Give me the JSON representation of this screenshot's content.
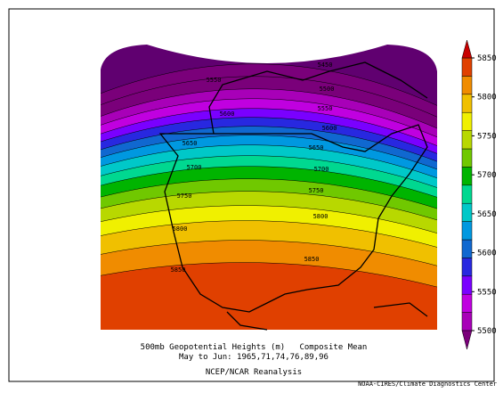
{
  "colorbar": {
    "ticks": [
      5500,
      5550,
      5600,
      5650,
      5700,
      5750,
      5800,
      5850
    ],
    "colors": [
      "#7a007a",
      "#a800b8",
      "#c000e0",
      "#7a00ff",
      "#2828e0",
      "#1068d0",
      "#0098e0",
      "#00c8c8",
      "#00d890",
      "#00b400",
      "#70c800",
      "#b8d800",
      "#f0f000",
      "#f0c000",
      "#f08c00",
      "#e04000",
      "#c80000"
    ]
  },
  "contour_labels": [
    5450,
    5500,
    5550,
    5550,
    5600,
    5600,
    5650,
    5650,
    5700,
    5700,
    5750,
    5750,
    5800,
    5800,
    5850,
    5850
  ],
  "caption": {
    "line1": "500mb Geopotential Heights (m)   Composite Mean",
    "line2": "May to Jun: 1965,71,74,76,89,96",
    "line3": "NCEP/NCAR Reanalysis",
    "credit": "NOAA-CIRES/Climate Diagnostics Center"
  }
}
